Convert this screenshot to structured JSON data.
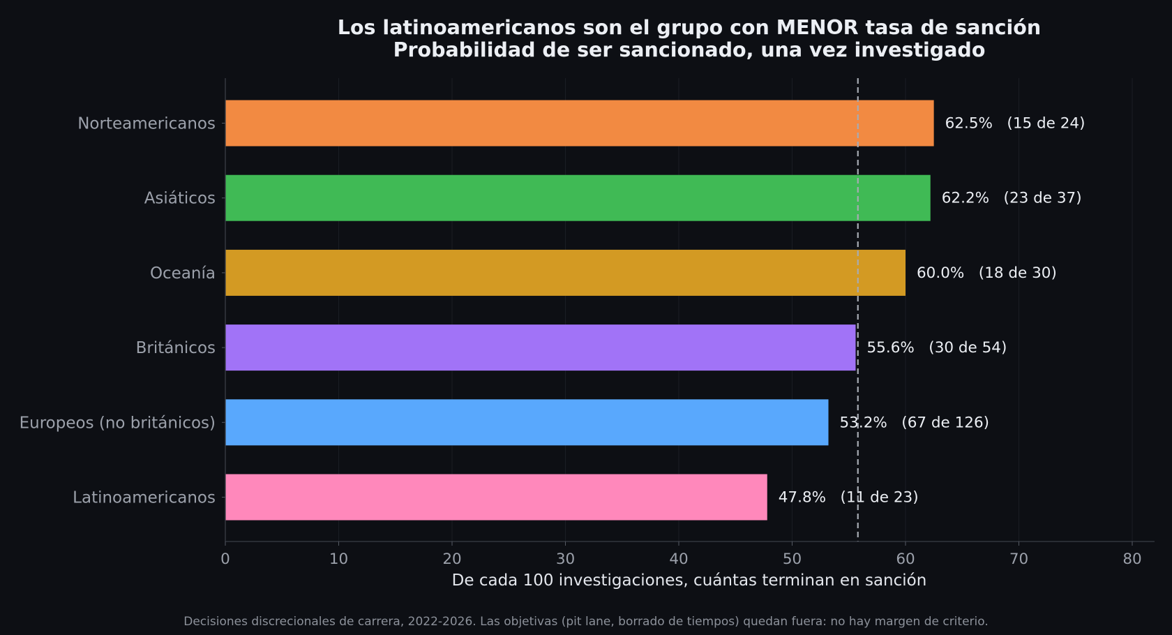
{
  "chart_data": {
    "type": "bar",
    "orientation": "horizontal",
    "title": "Los latinoamericanos son el grupo con MENOR tasa de sanción",
    "subtitle": "Probabilidad de ser sancionado, una vez investigado",
    "xlabel": "De cada 100 investigaciones, cuántas terminan en sanción",
    "ylabel": "",
    "xlim": [
      0,
      82
    ],
    "xticks": [
      0,
      10,
      20,
      30,
      40,
      50,
      60,
      70,
      80
    ],
    "grid": "vertical",
    "reference_line": {
      "value": 55.8,
      "style": "dashed"
    },
    "categories": [
      "Norteamericanos",
      "Asiáticos",
      "Oceanía",
      "Británicos",
      "Europeos (no británicos)",
      "Latinoamericanos"
    ],
    "values": [
      62.5,
      62.2,
      60.0,
      55.6,
      53.2,
      47.8
    ],
    "labels": [
      "62.5%   (15 de 24)",
      "62.2%   (23 de 37)",
      "60.0%   (18 de 30)",
      "55.6%   (30 de 54)",
      "53.2%   (67 de 126)",
      "47.8%   (11 de 23)"
    ],
    "colors": [
      "#f28a42",
      "#40ba55",
      "#d39a23",
      "#a173f7",
      "#59a8fd",
      "#ff88bb"
    ],
    "footnote": "Decisiones discrecionales de carrera, 2022-2026. Las objetivas (pit lane, borrado de tiempos) quedan fuera: no hay margen de criterio."
  }
}
